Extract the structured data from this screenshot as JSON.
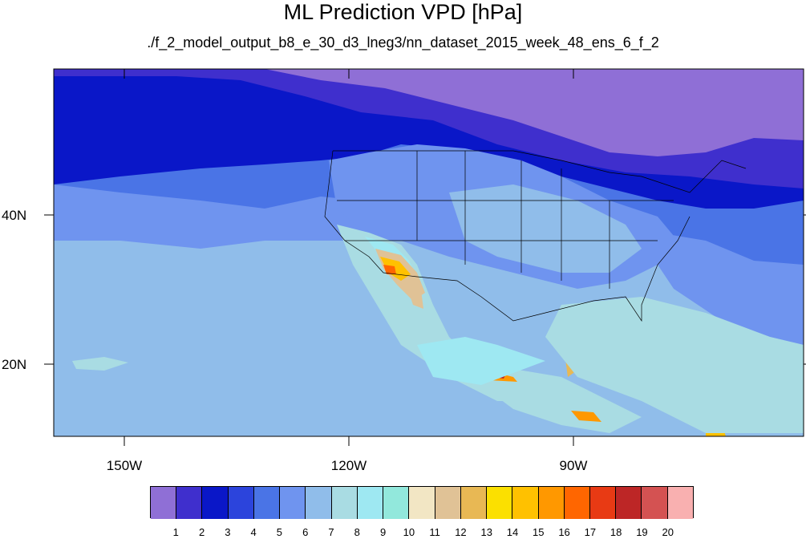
{
  "title": "ML Prediction VPD [hPa]",
  "subtitle": "./f_2_model_output_b8_e_30_d3_lneg3/nn_dataset_2015_week_48_ens_6_f_2",
  "map": {
    "lon_labels": [
      "150W",
      "120W",
      "90W"
    ],
    "lat_labels": [
      "40N",
      "20N"
    ]
  },
  "colorbar": {
    "colors": [
      "#8f6fd6",
      "#3f2fcd",
      "#0a17c8",
      "#2c44dc",
      "#4a74e6",
      "#6f94ef",
      "#90bdea",
      "#a9dce3",
      "#9ee8f2",
      "#92e8dc",
      "#f2e6c4",
      "#e0c296",
      "#e8b854",
      "#fbe000",
      "#ffc100",
      "#ff9800",
      "#ff6600",
      "#e83a14",
      "#bd2626",
      "#d45252",
      "#f9b0b0"
    ],
    "labels": [
      "1",
      "2",
      "3",
      "4",
      "5",
      "6",
      "7",
      "8",
      "9",
      "10",
      "11",
      "12",
      "13",
      "14",
      "15",
      "16",
      "17",
      "18",
      "19",
      "20"
    ]
  },
  "legend_colors": {
    "ocean_far": "#90bdea",
    "ocean_near": "#a9dce3",
    "north": "#8f6fd6"
  }
}
